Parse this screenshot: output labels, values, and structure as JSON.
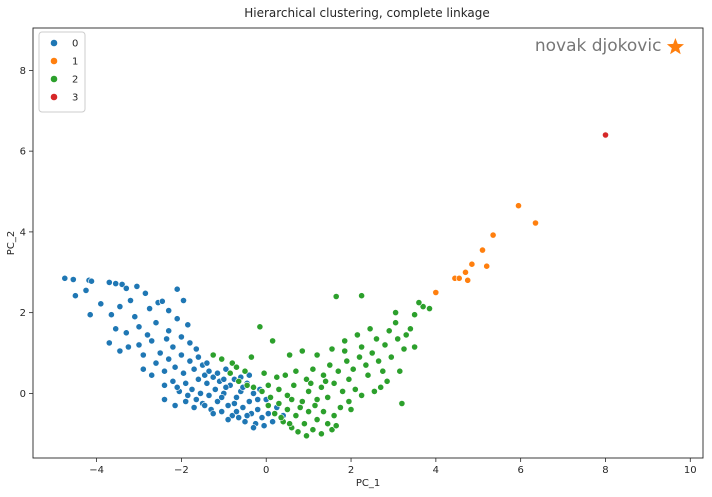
{
  "chart_data": {
    "type": "scatter",
    "title": "Hierarchical clustering, complete linkage",
    "xlabel": "PC_1",
    "ylabel": "PC_2",
    "xlim": [
      -5.5,
      10.3
    ],
    "ylim": [
      -1.6,
      9.05
    ],
    "xticks": [
      -4,
      -2,
      0,
      2,
      4,
      6,
      8,
      10
    ],
    "yticks": [
      0,
      2,
      4,
      6,
      8
    ],
    "grid": false,
    "legend_position": "top-left",
    "series": [
      {
        "name": "0",
        "color": "#1f77b4",
        "points": [
          [
            -4.75,
            2.85
          ],
          [
            -4.55,
            2.82
          ],
          [
            -4.5,
            2.42
          ],
          [
            -4.25,
            2.55
          ],
          [
            -4.18,
            2.8
          ],
          [
            -4.12,
            2.78
          ],
          [
            -4.15,
            1.95
          ],
          [
            -3.7,
            2.75
          ],
          [
            -3.55,
            2.72
          ],
          [
            -3.4,
            2.7
          ],
          [
            -3.3,
            2.6
          ],
          [
            -3.05,
            2.65
          ],
          [
            -2.85,
            2.48
          ],
          [
            -2.55,
            2.25
          ],
          [
            -2.45,
            2.28
          ],
          [
            -2.1,
            2.58
          ],
          [
            -3.9,
            2.22
          ],
          [
            -3.45,
            2.15
          ],
          [
            -3.2,
            2.3
          ],
          [
            -2.75,
            2.1
          ],
          [
            -2.3,
            2.05
          ],
          [
            -1.95,
            2.3
          ],
          [
            -3.65,
            1.95
          ],
          [
            -3.1,
            1.9
          ],
          [
            -3.55,
            1.6
          ],
          [
            -3.3,
            1.5
          ],
          [
            -3.0,
            1.65
          ],
          [
            -2.8,
            1.45
          ],
          [
            -2.6,
            1.75
          ],
          [
            -2.3,
            1.55
          ],
          [
            -2.1,
            1.85
          ],
          [
            -1.85,
            1.7
          ],
          [
            -3.7,
            1.25
          ],
          [
            -3.45,
            1.05
          ],
          [
            -3.25,
            1.15
          ],
          [
            -3.0,
            1.2
          ],
          [
            -2.9,
            0.95
          ],
          [
            -2.7,
            1.3
          ],
          [
            -2.5,
            1.0
          ],
          [
            -2.35,
            1.35
          ],
          [
            -2.2,
            1.15
          ],
          [
            -2.0,
            1.4
          ],
          [
            -1.8,
            1.25
          ],
          [
            -1.65,
            1.1
          ],
          [
            -2.9,
            0.6
          ],
          [
            -2.7,
            0.45
          ],
          [
            -2.6,
            0.75
          ],
          [
            -2.4,
            0.55
          ],
          [
            -2.3,
            0.85
          ],
          [
            -2.15,
            0.65
          ],
          [
            -2.0,
            0.95
          ],
          [
            -1.95,
            0.5
          ],
          [
            -1.8,
            0.8
          ],
          [
            -1.7,
            0.6
          ],
          [
            -1.6,
            0.9
          ],
          [
            -1.5,
            0.7
          ],
          [
            -1.45,
            0.45
          ],
          [
            -2.4,
            0.2
          ],
          [
            -2.2,
            0.3
          ],
          [
            -2.05,
            0.05
          ],
          [
            -1.9,
            0.25
          ],
          [
            -1.75,
            0.1
          ],
          [
            -1.6,
            0.35
          ],
          [
            -1.55,
            0.0
          ],
          [
            -1.4,
            0.25
          ],
          [
            -1.35,
            -0.05
          ],
          [
            -1.25,
            0.4
          ],
          [
            -1.2,
            0.1
          ],
          [
            -2.4,
            -0.15
          ],
          [
            -2.15,
            -0.3
          ],
          [
            -1.9,
            -0.2
          ],
          [
            -1.7,
            -0.35
          ],
          [
            -1.5,
            -0.25
          ],
          [
            -1.3,
            -0.4
          ],
          [
            -1.15,
            -0.2
          ],
          [
            -1.05,
            -0.45
          ],
          [
            -1.0,
            0.0
          ],
          [
            -0.9,
            -0.3
          ],
          [
            -0.85,
            0.2
          ],
          [
            -0.8,
            -0.55
          ],
          [
            -0.7,
            -0.1
          ],
          [
            -0.65,
            -0.6
          ],
          [
            -0.55,
            -0.35
          ],
          [
            -0.5,
            -0.7
          ],
          [
            -0.4,
            -0.2
          ],
          [
            -0.35,
            -0.5
          ],
          [
            -0.25,
            -0.75
          ],
          [
            -0.2,
            -0.4
          ],
          [
            -0.1,
            -0.6
          ],
          [
            -0.05,
            -0.8
          ],
          [
            0.05,
            -0.5
          ],
          [
            0.15,
            -0.7
          ],
          [
            0.25,
            -0.35
          ],
          [
            0.4,
            -0.55
          ],
          [
            -1.1,
            0.3
          ],
          [
            -0.95,
            0.15
          ],
          [
            -0.75,
            0.35
          ],
          [
            -0.6,
            0.05
          ],
          [
            -0.45,
            0.25
          ],
          [
            -0.3,
            0.0
          ],
          [
            -0.15,
            0.1
          ],
          [
            0.0,
            -0.15
          ],
          [
            -2.1,
            0.15
          ],
          [
            -1.85,
            -0.05
          ],
          [
            -1.65,
            -0.15
          ],
          [
            -1.45,
            -0.3
          ],
          [
            -1.25,
            -0.5
          ],
          [
            -1.05,
            -0.1
          ],
          [
            -0.9,
            -0.65
          ],
          [
            -0.7,
            -0.45
          ],
          [
            -0.45,
            -0.55
          ],
          [
            -0.3,
            -0.85
          ],
          [
            -1.35,
            0.55
          ],
          [
            -1.15,
            0.5
          ],
          [
            -1.0,
            0.35
          ],
          [
            -0.6,
            0.4
          ],
          [
            -0.4,
            0.45
          ],
          [
            -1.4,
            0.75
          ],
          [
            -0.95,
            0.6
          ],
          [
            -0.75,
            -0.25
          ],
          [
            -0.55,
            0.15
          ],
          [
            -0.2,
            -0.15
          ]
        ]
      },
      {
        "name": "1",
        "color": "#ff7f0e",
        "points": [
          [
            4.0,
            2.5
          ],
          [
            4.45,
            2.85
          ],
          [
            4.55,
            2.85
          ],
          [
            4.75,
            2.8
          ],
          [
            4.7,
            3.0
          ],
          [
            4.85,
            3.2
          ],
          [
            5.1,
            3.55
          ],
          [
            5.2,
            3.15
          ],
          [
            5.35,
            3.92
          ],
          [
            5.95,
            4.65
          ],
          [
            6.35,
            4.22
          ]
        ]
      },
      {
        "name": "2",
        "color": "#2ca02c",
        "points": [
          [
            -1.25,
            0.95
          ],
          [
            -1.05,
            0.85
          ],
          [
            -0.8,
            0.75
          ],
          [
            -0.7,
            0.65
          ],
          [
            -0.5,
            0.55
          ],
          [
            -0.35,
            0.9
          ],
          [
            -0.15,
            1.65
          ],
          [
            0.15,
            1.3
          ],
          [
            -0.85,
            0.5
          ],
          [
            -0.65,
            0.3
          ],
          [
            -0.45,
            0.2
          ],
          [
            -0.3,
            0.15
          ],
          [
            -0.1,
            0.05
          ],
          [
            0.1,
            -0.1
          ],
          [
            0.3,
            -0.25
          ],
          [
            0.5,
            -0.4
          ],
          [
            0.7,
            -0.55
          ],
          [
            0.9,
            -0.75
          ],
          [
            1.1,
            -0.9
          ],
          [
            1.3,
            -1.0
          ],
          [
            0.05,
            -0.3
          ],
          [
            0.2,
            -0.5
          ],
          [
            0.4,
            -0.7
          ],
          [
            0.6,
            -0.85
          ],
          [
            0.75,
            -0.95
          ],
          [
            0.95,
            -1.05
          ],
          [
            1.2,
            -0.65
          ],
          [
            1.45,
            -0.75
          ],
          [
            1.6,
            -0.55
          ],
          [
            1.75,
            -0.35
          ],
          [
            1.55,
            -0.9
          ],
          [
            0.3,
            0.1
          ],
          [
            0.5,
            -0.05
          ],
          [
            0.65,
            0.2
          ],
          [
            0.85,
            -0.2
          ],
          [
            1.0,
            0.05
          ],
          [
            1.15,
            -0.3
          ],
          [
            1.3,
            0.15
          ],
          [
            1.45,
            -0.1
          ],
          [
            1.6,
            0.25
          ],
          [
            1.8,
            0.05
          ],
          [
            1.95,
            0.35
          ],
          [
            2.1,
            0.1
          ],
          [
            0.45,
            0.45
          ],
          [
            0.7,
            0.55
          ],
          [
            0.95,
            0.35
          ],
          [
            1.1,
            0.6
          ],
          [
            1.35,
            0.45
          ],
          [
            1.5,
            0.7
          ],
          [
            1.7,
            0.55
          ],
          [
            1.9,
            0.8
          ],
          [
            2.05,
            0.6
          ],
          [
            2.2,
            0.9
          ],
          [
            2.35,
            0.7
          ],
          [
            2.5,
            1.0
          ],
          [
            2.65,
            0.8
          ],
          [
            2.8,
            1.2
          ],
          [
            2.95,
            0.9
          ],
          [
            3.1,
            1.35
          ],
          [
            3.25,
            1.1
          ],
          [
            0.55,
            0.95
          ],
          [
            0.85,
            1.05
          ],
          [
            1.2,
            0.95
          ],
          [
            1.55,
            1.1
          ],
          [
            1.85,
            1.3
          ],
          [
            2.15,
            1.45
          ],
          [
            2.45,
            1.6
          ],
          [
            2.6,
            1.35
          ],
          [
            2.9,
            1.55
          ],
          [
            3.05,
            1.75
          ],
          [
            3.3,
            1.45
          ],
          [
            3.5,
            1.95
          ],
          [
            3.7,
            2.15
          ],
          [
            3.85,
            2.1
          ],
          [
            3.6,
            2.25
          ],
          [
            1.65,
            2.4
          ],
          [
            2.25,
            2.42
          ],
          [
            3.4,
            1.6
          ],
          [
            3.05,
            2.0
          ],
          [
            1.0,
            -0.45
          ],
          [
            0.8,
            -0.35
          ],
          [
            0.6,
            -0.15
          ],
          [
            0.25,
            0.4
          ],
          [
            0.05,
            0.2
          ],
          [
            -0.05,
            0.5
          ],
          [
            1.95,
            -0.2
          ],
          [
            2.25,
            -0.05
          ],
          [
            2.55,
            0.05
          ],
          [
            2.85,
            0.3
          ],
          [
            3.15,
            0.55
          ],
          [
            2.0,
            -0.4
          ],
          [
            1.65,
            -0.8
          ],
          [
            2.4,
            0.45
          ],
          [
            2.7,
            0.15
          ],
          [
            3.2,
            -0.25
          ],
          [
            1.2,
            -0.15
          ],
          [
            1.4,
            0.3
          ],
          [
            1.05,
            0.25
          ],
          [
            0.35,
            -0.6
          ],
          [
            0.55,
            -0.75
          ],
          [
            1.35,
            -0.45
          ],
          [
            1.85,
            1.05
          ],
          [
            2.25,
            1.15
          ],
          [
            2.75,
            0.55
          ],
          [
            3.5,
            1.15
          ]
        ]
      },
      {
        "name": "3",
        "color": "#d62728",
        "points": [
          [
            8.0,
            6.4
          ]
        ]
      }
    ],
    "annotations": [
      {
        "text": "novak djokovic",
        "x": 9.65,
        "y": 8.58,
        "marker": "star",
        "color": "#ff7f0e"
      }
    ]
  }
}
